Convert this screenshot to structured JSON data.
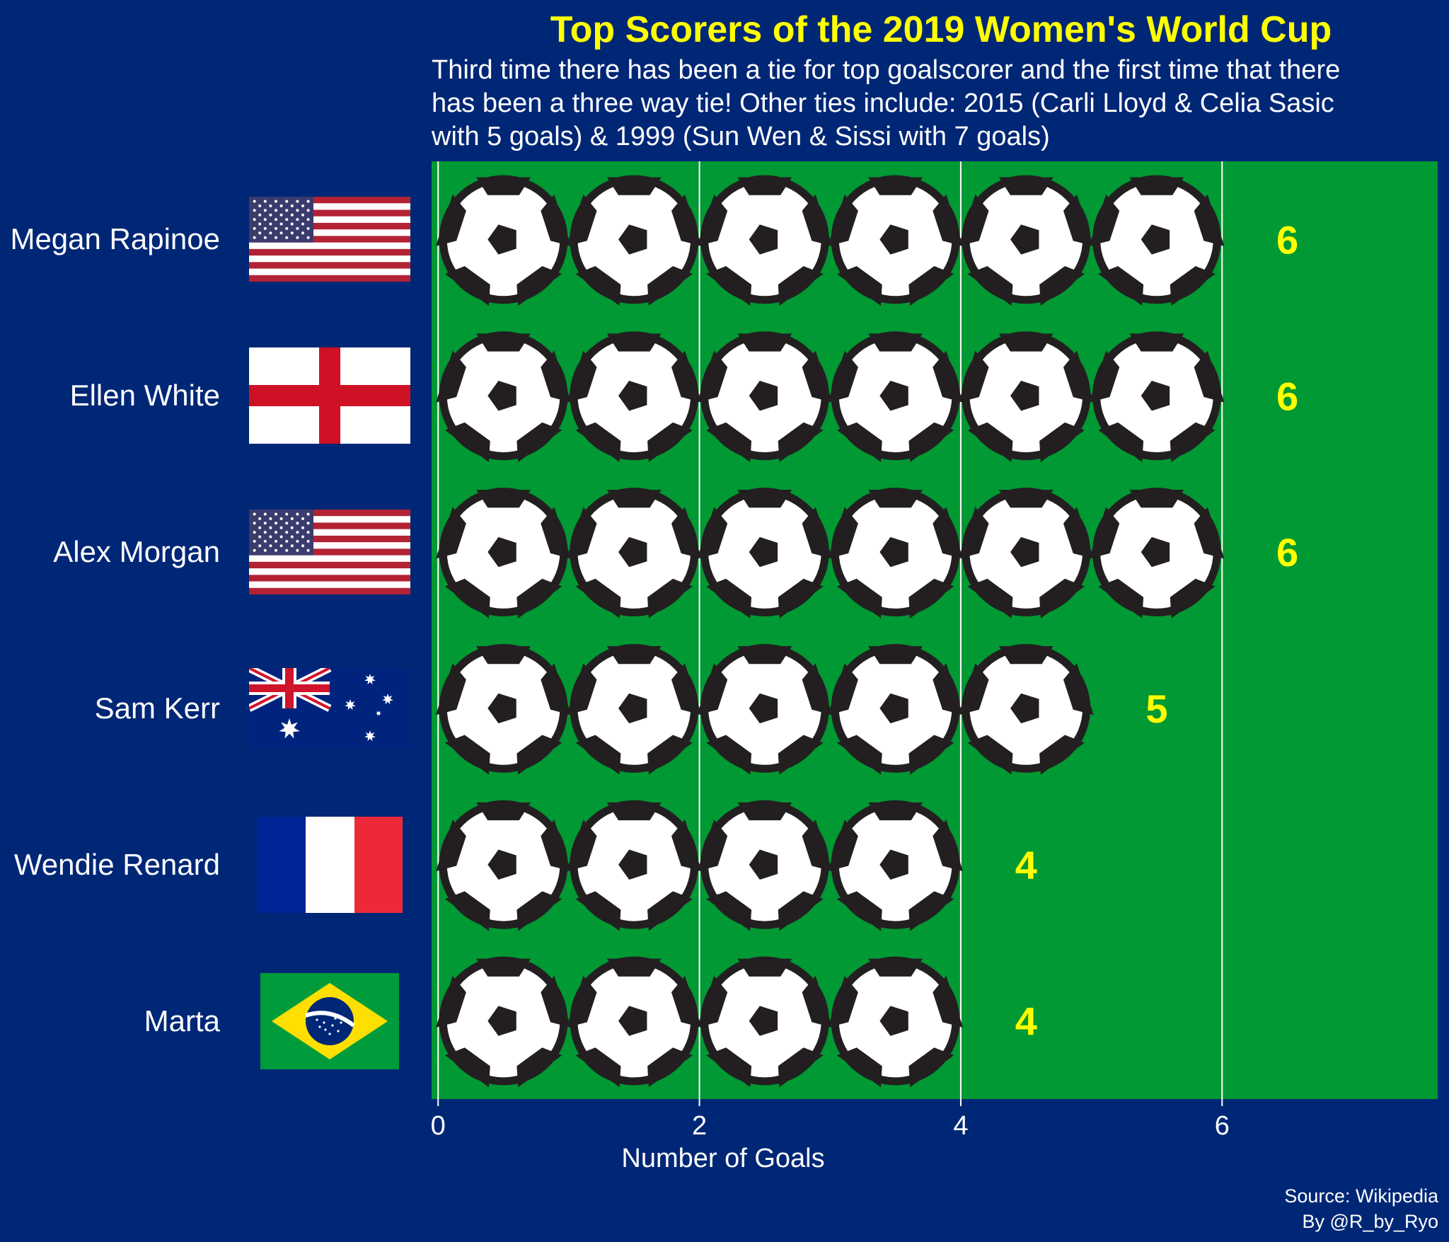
{
  "colors": {
    "background": "#002776",
    "field": "#009933",
    "gridline": "#ffffff",
    "accent": "#ffff00",
    "ball_dark": "#231f20",
    "ball_light": "#ffffff"
  },
  "header": {
    "title": "Top Scorers of the 2019 Women's World Cup",
    "subtitle_lines": [
      "Third time there has been a tie for top goalscorer and the first time that there",
      "has been a three way tie! Other ties include: 2015 (Carli Lloyd & Celia Sasic",
      "with 5 goals) & 1999 (Sun Wen & Sissi with 7 goals)"
    ]
  },
  "footer": {
    "source": "Source: Wikipedia",
    "credit": "By @R_by_Ryo"
  },
  "chart_data": {
    "type": "bar",
    "mark": "soccer-ball-icons",
    "title": "Top Scorers of the 2019 Women's World Cup",
    "xlabel": "Number of Goals",
    "ylabel": "",
    "xlim": [
      -0.05,
      7.65
    ],
    "x_ticks": [
      0,
      2,
      4,
      6
    ],
    "grid": "vertical",
    "legend": "none",
    "categories": [
      "Megan Rapinoe",
      "Ellen White",
      "Alex Morgan",
      "Sam Kerr",
      "Wendie Renard",
      "Marta"
    ],
    "flags": [
      "usa-flag",
      "england-flag",
      "usa-flag",
      "australia-flag",
      "france-flag",
      "brazil-flag"
    ],
    "values": [
      6,
      6,
      6,
      5,
      4,
      4
    ],
    "data_labels": [
      "6",
      "6",
      "6",
      "5",
      "4",
      "4"
    ]
  }
}
